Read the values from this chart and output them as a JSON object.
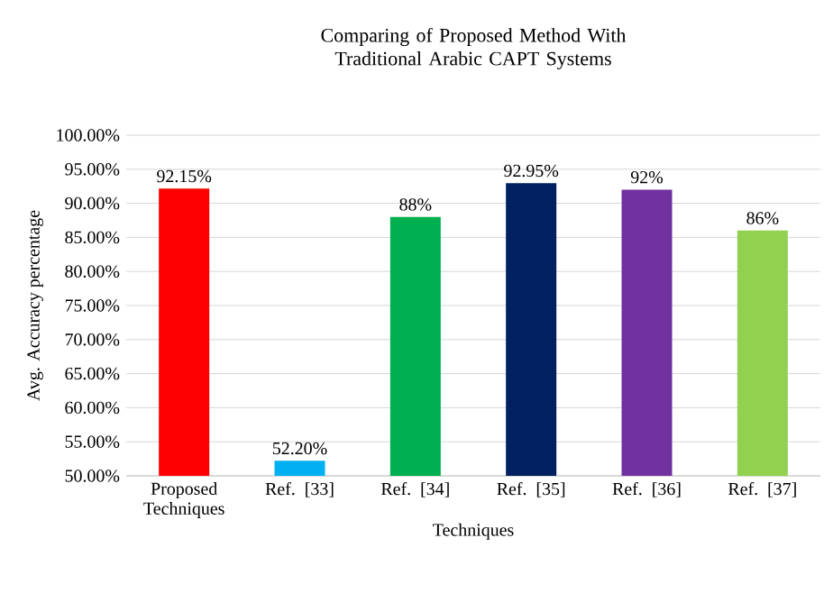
{
  "chart_data": {
    "type": "bar",
    "title": "Comparing of Proposed Method With Traditional Arabic CAPT Systems",
    "xlabel": "Techniques",
    "ylabel": "Avg. Accuracy percentage",
    "categories": [
      "Proposed Techniques",
      "Ref. [33]",
      "Ref. [34]",
      "Ref. [35]",
      "Ref. [36]",
      "Ref. [37]"
    ],
    "values": [
      92.15,
      52.2,
      88,
      92.95,
      92,
      86
    ],
    "value_labels": [
      "92.15%",
      "52.20%",
      "88%",
      "92.95%",
      "92%",
      "86%"
    ],
    "colors": [
      "#ff0000",
      "#00b0f0",
      "#00b050",
      "#002060",
      "#7030a0",
      "#92d050"
    ],
    "ylim": [
      50,
      100
    ],
    "yticks": [
      {
        "value": 50,
        "label": "50.00%"
      },
      {
        "value": 55,
        "label": "55.00%"
      },
      {
        "value": 60,
        "label": "60.00%"
      },
      {
        "value": 65,
        "label": "65.00%"
      },
      {
        "value": 70,
        "label": "70.00%"
      },
      {
        "value": 75,
        "label": "75.00%"
      },
      {
        "value": 80,
        "label": "80.00%"
      },
      {
        "value": 85,
        "label": "85.00%"
      },
      {
        "value": 90,
        "label": "90.00%"
      },
      {
        "value": 95,
        "label": "95.00%"
      },
      {
        "value": 100,
        "label": "100.00%"
      }
    ],
    "grid": "y"
  }
}
